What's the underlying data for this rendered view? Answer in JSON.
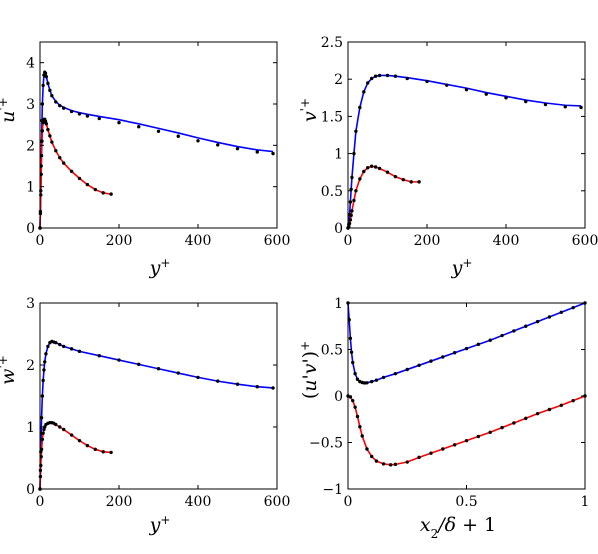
{
  "chart_data": [
    {
      "type": "line",
      "ylabel": "u'+",
      "xlabel": "y+",
      "xlim": [
        0,
        600
      ],
      "ylim": [
        0,
        4.5
      ],
      "xticks": [
        "0",
        "200",
        "400",
        "600"
      ],
      "yticks": [
        "0",
        "1",
        "2",
        "3",
        "4"
      ],
      "series": [
        {
          "style": "line",
          "color": "#0000ff",
          "x": [
            0,
            1,
            2,
            3,
            4,
            5,
            6,
            8,
            10,
            12,
            14,
            16,
            20,
            25,
            30,
            40,
            50,
            60,
            80,
            100,
            120,
            150,
            200,
            250,
            300,
            350,
            400,
            450,
            500,
            550,
            590
          ],
          "y": [
            0,
            0.4,
            0.9,
            1.5,
            2.1,
            2.6,
            3.0,
            3.45,
            3.7,
            3.77,
            3.74,
            3.66,
            3.5,
            3.33,
            3.2,
            3.06,
            2.97,
            2.92,
            2.84,
            2.79,
            2.75,
            2.7,
            2.62,
            2.52,
            2.41,
            2.3,
            2.18,
            2.07,
            1.97,
            1.89,
            1.85
          ]
        },
        {
          "style": "dots",
          "color": "#000000",
          "x": [
            0,
            1,
            2,
            3,
            4,
            5,
            6,
            8,
            10,
            12,
            14,
            16,
            20,
            25,
            30,
            40,
            50,
            60,
            80,
            100,
            120,
            150,
            200,
            250,
            300,
            350,
            400,
            450,
            500,
            550,
            590
          ],
          "y": [
            0,
            0.4,
            0.9,
            1.5,
            2.1,
            2.6,
            3.0,
            3.45,
            3.7,
            3.77,
            3.74,
            3.66,
            3.5,
            3.33,
            3.2,
            3.05,
            2.96,
            2.9,
            2.82,
            2.76,
            2.71,
            2.65,
            2.55,
            2.45,
            2.34,
            2.22,
            2.11,
            2.01,
            1.92,
            1.84,
            1.8
          ]
        },
        {
          "style": "line",
          "color": "#ff0000",
          "x": [
            0,
            1,
            2,
            3,
            4,
            5,
            6,
            8,
            10,
            12,
            14,
            16,
            20,
            25,
            30,
            40,
            50,
            60,
            80,
            100,
            120,
            140,
            160,
            180
          ],
          "y": [
            0,
            0.35,
            0.8,
            1.3,
            1.75,
            2.1,
            2.35,
            2.55,
            2.63,
            2.63,
            2.58,
            2.52,
            2.38,
            2.23,
            2.08,
            1.87,
            1.7,
            1.57,
            1.37,
            1.2,
            1.05,
            0.93,
            0.85,
            0.82
          ]
        },
        {
          "style": "dots",
          "color": "#000000",
          "x": [
            0,
            1,
            2,
            3,
            4,
            5,
            6,
            8,
            10,
            12,
            14,
            16,
            20,
            25,
            30,
            40,
            50,
            60,
            80,
            100,
            120,
            140,
            160,
            180
          ],
          "y": [
            0,
            0.35,
            0.8,
            1.3,
            1.75,
            2.1,
            2.35,
            2.55,
            2.63,
            2.63,
            2.58,
            2.52,
            2.38,
            2.23,
            2.08,
            1.87,
            1.7,
            1.57,
            1.37,
            1.2,
            1.05,
            0.93,
            0.85,
            0.82
          ]
        }
      ]
    },
    {
      "type": "line",
      "ylabel": "v'+",
      "xlabel": "y+",
      "xlim": [
        0,
        600
      ],
      "ylim": [
        0,
        2.5
      ],
      "xticks": [
        "0",
        "200",
        "400",
        "600"
      ],
      "yticks": [
        "0",
        "0.5",
        "1",
        "1.5",
        "2",
        "2.5"
      ],
      "series": [
        {
          "style": "line",
          "color": "#0000ff",
          "x": [
            0,
            2,
            4,
            6,
            8,
            10,
            15,
            20,
            30,
            40,
            50,
            60,
            70,
            80,
            100,
            120,
            150,
            200,
            250,
            300,
            350,
            400,
            450,
            500,
            550,
            590
          ],
          "y": [
            0,
            0.05,
            0.18,
            0.35,
            0.52,
            0.68,
            1.0,
            1.3,
            1.62,
            1.83,
            1.95,
            2.01,
            2.04,
            2.05,
            2.05,
            2.04,
            2.02,
            1.98,
            1.93,
            1.88,
            1.82,
            1.77,
            1.72,
            1.68,
            1.65,
            1.64
          ]
        },
        {
          "style": "dots",
          "color": "#000000",
          "x": [
            0,
            2,
            4,
            6,
            8,
            10,
            15,
            20,
            30,
            40,
            50,
            60,
            70,
            80,
            100,
            120,
            150,
            200,
            250,
            300,
            350,
            400,
            450,
            500,
            550,
            590
          ],
          "y": [
            0,
            0.05,
            0.18,
            0.35,
            0.52,
            0.68,
            1.0,
            1.3,
            1.62,
            1.83,
            1.95,
            2.01,
            2.04,
            2.05,
            2.05,
            2.04,
            2.01,
            1.97,
            1.92,
            1.86,
            1.8,
            1.75,
            1.7,
            1.66,
            1.63,
            1.62
          ]
        },
        {
          "style": "line",
          "color": "#ff0000",
          "x": [
            0,
            2,
            4,
            6,
            8,
            10,
            15,
            20,
            30,
            40,
            50,
            60,
            70,
            80,
            100,
            120,
            140,
            160,
            180
          ],
          "y": [
            0,
            0.02,
            0.06,
            0.11,
            0.17,
            0.23,
            0.37,
            0.5,
            0.66,
            0.76,
            0.81,
            0.83,
            0.82,
            0.8,
            0.75,
            0.69,
            0.65,
            0.62,
            0.62
          ]
        },
        {
          "style": "dots",
          "color": "#000000",
          "x": [
            0,
            2,
            4,
            6,
            8,
            10,
            15,
            20,
            30,
            40,
            50,
            60,
            70,
            80,
            100,
            120,
            140,
            160,
            180
          ],
          "y": [
            0,
            0.02,
            0.06,
            0.11,
            0.17,
            0.23,
            0.37,
            0.5,
            0.66,
            0.76,
            0.81,
            0.83,
            0.82,
            0.8,
            0.75,
            0.69,
            0.65,
            0.62,
            0.62
          ]
        }
      ]
    },
    {
      "type": "line",
      "ylabel": "w'+",
      "xlabel": "y+",
      "xlim": [
        0,
        600
      ],
      "ylim": [
        0,
        3
      ],
      "xticks": [
        "0",
        "200",
        "400",
        "600"
      ],
      "yticks": [
        "0",
        "1",
        "2",
        "3"
      ],
      "series": [
        {
          "style": "line",
          "color": "#0000ff",
          "x": [
            0,
            1,
            2,
            3,
            4,
            6,
            8,
            10,
            12,
            15,
            20,
            25,
            30,
            35,
            40,
            50,
            60,
            80,
            100,
            150,
            200,
            250,
            300,
            350,
            400,
            450,
            500,
            550,
            590
          ],
          "y": [
            0,
            0.3,
            0.6,
            0.9,
            1.15,
            1.5,
            1.75,
            1.92,
            2.05,
            2.18,
            2.3,
            2.36,
            2.38,
            2.37,
            2.36,
            2.33,
            2.3,
            2.26,
            2.22,
            2.15,
            2.08,
            2.01,
            1.94,
            1.87,
            1.8,
            1.74,
            1.69,
            1.65,
            1.63
          ]
        },
        {
          "style": "dots",
          "color": "#000000",
          "x": [
            0,
            1,
            2,
            3,
            4,
            6,
            8,
            10,
            12,
            15,
            20,
            25,
            30,
            35,
            40,
            50,
            60,
            80,
            100,
            150,
            200,
            250,
            300,
            350,
            400,
            450,
            500,
            550,
            590
          ],
          "y": [
            0,
            0.3,
            0.6,
            0.9,
            1.15,
            1.5,
            1.75,
            1.92,
            2.05,
            2.18,
            2.3,
            2.36,
            2.38,
            2.37,
            2.36,
            2.33,
            2.3,
            2.26,
            2.22,
            2.15,
            2.08,
            2.01,
            1.94,
            1.87,
            1.8,
            1.74,
            1.69,
            1.65,
            1.63
          ]
        },
        {
          "style": "line",
          "color": "#ff0000",
          "x": [
            0,
            1,
            2,
            3,
            4,
            6,
            8,
            10,
            12,
            15,
            20,
            25,
            30,
            35,
            40,
            50,
            60,
            80,
            100,
            120,
            140,
            160,
            180
          ],
          "y": [
            0,
            0.2,
            0.38,
            0.52,
            0.64,
            0.8,
            0.9,
            0.96,
            1.0,
            1.04,
            1.06,
            1.07,
            1.07,
            1.06,
            1.04,
            1.0,
            0.96,
            0.87,
            0.78,
            0.7,
            0.64,
            0.6,
            0.59
          ]
        },
        {
          "style": "dots",
          "color": "#000000",
          "x": [
            0,
            1,
            2,
            3,
            4,
            6,
            8,
            10,
            12,
            15,
            20,
            25,
            30,
            35,
            40,
            50,
            60,
            80,
            100,
            120,
            140,
            160,
            180
          ],
          "y": [
            0,
            0.2,
            0.38,
            0.52,
            0.64,
            0.8,
            0.9,
            0.96,
            1.0,
            1.04,
            1.06,
            1.07,
            1.07,
            1.06,
            1.04,
            1.0,
            0.96,
            0.87,
            0.78,
            0.7,
            0.64,
            0.6,
            0.59
          ]
        }
      ]
    },
    {
      "type": "line",
      "ylabel": "(u'v')+",
      "xlabel": "x2/δ + 1",
      "xlim": [
        0,
        1
      ],
      "ylim": [
        -1,
        1
      ],
      "xticks": [
        "0",
        "0.5",
        "1"
      ],
      "yticks": [
        "−1",
        "−0.5",
        "0",
        "0.5",
        "1"
      ],
      "series": [
        {
          "style": "line",
          "color": "#0000ff",
          "x": [
            0,
            0.005,
            0.01,
            0.015,
            0.02,
            0.03,
            0.04,
            0.05,
            0.06,
            0.07,
            0.08,
            0.1,
            0.12,
            0.15,
            0.2,
            0.3,
            0.4,
            0.5,
            0.6,
            0.7,
            0.8,
            0.9,
            1.0
          ],
          "y": [
            1.0,
            0.82,
            0.62,
            0.47,
            0.36,
            0.24,
            0.18,
            0.155,
            0.145,
            0.14,
            0.142,
            0.155,
            0.17,
            0.2,
            0.24,
            0.33,
            0.42,
            0.51,
            0.6,
            0.7,
            0.8,
            0.9,
            1.0
          ]
        },
        {
          "style": "dots",
          "color": "#000000",
          "x": [
            0,
            0.005,
            0.01,
            0.015,
            0.02,
            0.03,
            0.04,
            0.05,
            0.06,
            0.07,
            0.08,
            0.1,
            0.12,
            0.15,
            0.2,
            0.25,
            0.3,
            0.35,
            0.4,
            0.45,
            0.5,
            0.55,
            0.6,
            0.65,
            0.7,
            0.75,
            0.8,
            0.85,
            0.9,
            0.95,
            1.0
          ],
          "y": [
            1.0,
            0.82,
            0.62,
            0.47,
            0.36,
            0.24,
            0.18,
            0.155,
            0.145,
            0.14,
            0.142,
            0.155,
            0.17,
            0.2,
            0.24,
            0.285,
            0.33,
            0.375,
            0.42,
            0.465,
            0.51,
            0.555,
            0.6,
            0.65,
            0.7,
            0.75,
            0.8,
            0.85,
            0.9,
            0.95,
            1.0
          ]
        },
        {
          "style": "line",
          "color": "#ff0000",
          "x": [
            0,
            0.01,
            0.02,
            0.03,
            0.04,
            0.05,
            0.06,
            0.08,
            0.1,
            0.12,
            0.15,
            0.18,
            0.2,
            0.25,
            0.3,
            0.4,
            0.5,
            0.6,
            0.7,
            0.8,
            0.9,
            1.0
          ],
          "y": [
            0,
            -0.01,
            -0.05,
            -0.12,
            -0.22,
            -0.33,
            -0.43,
            -0.57,
            -0.65,
            -0.7,
            -0.73,
            -0.74,
            -0.735,
            -0.71,
            -0.66,
            -0.57,
            -0.48,
            -0.39,
            -0.29,
            -0.19,
            -0.1,
            0.0
          ]
        },
        {
          "style": "dots",
          "color": "#000000",
          "x": [
            0,
            0.01,
            0.02,
            0.03,
            0.04,
            0.05,
            0.06,
            0.08,
            0.1,
            0.12,
            0.15,
            0.18,
            0.2,
            0.25,
            0.3,
            0.35,
            0.4,
            0.45,
            0.5,
            0.55,
            0.6,
            0.65,
            0.7,
            0.75,
            0.8,
            0.85,
            0.9,
            0.95,
            1.0
          ],
          "y": [
            0,
            -0.01,
            -0.05,
            -0.12,
            -0.22,
            -0.33,
            -0.43,
            -0.57,
            -0.65,
            -0.7,
            -0.73,
            -0.74,
            -0.735,
            -0.71,
            -0.66,
            -0.615,
            -0.57,
            -0.525,
            -0.48,
            -0.435,
            -0.39,
            -0.34,
            -0.29,
            -0.24,
            -0.19,
            -0.145,
            -0.1,
            -0.05,
            0.0
          ]
        }
      ]
    }
  ]
}
